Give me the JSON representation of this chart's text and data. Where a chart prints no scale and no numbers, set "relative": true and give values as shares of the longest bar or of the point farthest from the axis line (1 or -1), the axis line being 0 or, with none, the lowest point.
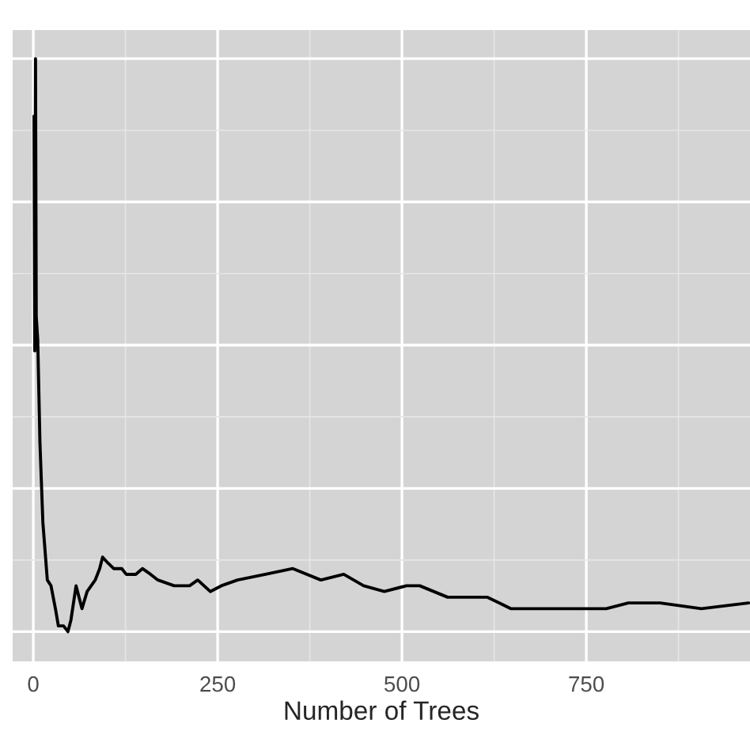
{
  "chart_data": {
    "type": "line",
    "xlabel": "Number of Trees",
    "relative": true,
    "xlim": [
      -28,
      972
    ],
    "xticks": [
      0,
      250,
      500,
      750
    ],
    "grid": true,
    "series": [
      {
        "color": "#000000",
        "x": [
          1,
          2,
          3,
          4,
          6,
          9,
          13,
          19,
          24,
          30,
          34,
          41,
          47,
          51,
          58,
          62,
          66,
          73,
          84,
          90,
          94,
          101,
          109,
          120,
          126,
          139,
          148,
          159,
          169,
          191,
          202,
          212,
          223,
          240,
          255,
          277,
          315,
          352,
          390,
          421,
          448,
          476,
          506,
          524,
          562,
          592,
          616,
          648,
          691,
          734,
          777,
          807,
          850,
          906,
          970
        ],
        "values": [
          0.9,
          0.49,
          1.0,
          0.55,
          0.51,
          0.33,
          0.19,
          0.09,
          0.08,
          0.04,
          0.01,
          0.01,
          0.0,
          0.02,
          0.08,
          0.06,
          0.04,
          0.07,
          0.09,
          0.11,
          0.13,
          0.12,
          0.11,
          0.11,
          0.1,
          0.1,
          0.11,
          0.1,
          0.09,
          0.08,
          0.08,
          0.08,
          0.09,
          0.07,
          0.08,
          0.09,
          0.1,
          0.11,
          0.09,
          0.1,
          0.08,
          0.07,
          0.08,
          0.08,
          0.06,
          0.06,
          0.06,
          0.04,
          0.04,
          0.04,
          0.04,
          0.05,
          0.05,
          0.04,
          0.05
        ]
      }
    ]
  }
}
